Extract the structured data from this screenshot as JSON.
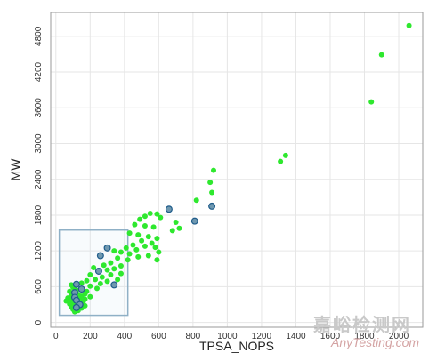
{
  "chart_data": {
    "type": "scatter",
    "title": "",
    "xlabel": "TPSA_NOPS",
    "ylabel": "MW",
    "xlim": [
      -30,
      2140
    ],
    "ylim": [
      -80,
      5200
    ],
    "x_ticks": [
      0,
      200,
      400,
      600,
      800,
      1000,
      1200,
      1400,
      1600,
      1800,
      2000
    ],
    "y_ticks": [
      0,
      600,
      1200,
      1800,
      2400,
      3000,
      3600,
      4200,
      4800
    ],
    "grid": true,
    "legend": "none",
    "colors": {
      "point": "#2ee82e",
      "highlight_fill": "#6f98b0",
      "highlight_edge": "#1f5c8a",
      "selection_box": "#8fb0c6",
      "grid": "#e6e6e6",
      "frame": "#9a9a9a"
    },
    "selection_region": {
      "x": [
        20,
        420
      ],
      "y": [
        120,
        1550
      ]
    },
    "points": [
      {
        "x": 2060,
        "y": 4980
      },
      {
        "x": 1900,
        "y": 4490
      },
      {
        "x": 1840,
        "y": 3700
      },
      {
        "x": 1340,
        "y": 2800
      },
      {
        "x": 1310,
        "y": 2700
      },
      {
        "x": 920,
        "y": 2550
      },
      {
        "x": 900,
        "y": 2350
      },
      {
        "x": 910,
        "y": 2180
      },
      {
        "x": 820,
        "y": 2050
      },
      {
        "x": 910,
        "y": 1950,
        "highlight": true
      },
      {
        "x": 660,
        "y": 1900,
        "highlight": true
      },
      {
        "x": 550,
        "y": 1830
      },
      {
        "x": 590,
        "y": 1820
      },
      {
        "x": 520,
        "y": 1780
      },
      {
        "x": 610,
        "y": 1760
      },
      {
        "x": 490,
        "y": 1730
      },
      {
        "x": 810,
        "y": 1700,
        "highlight": true
      },
      {
        "x": 700,
        "y": 1680
      },
      {
        "x": 460,
        "y": 1640
      },
      {
        "x": 520,
        "y": 1620
      },
      {
        "x": 570,
        "y": 1600
      },
      {
        "x": 720,
        "y": 1580
      },
      {
        "x": 680,
        "y": 1540
      },
      {
        "x": 430,
        "y": 1500
      },
      {
        "x": 480,
        "y": 1470
      },
      {
        "x": 540,
        "y": 1440
      },
      {
        "x": 590,
        "y": 1410
      },
      {
        "x": 500,
        "y": 1370
      },
      {
        "x": 560,
        "y": 1330
      },
      {
        "x": 450,
        "y": 1300
      },
      {
        "x": 520,
        "y": 1280
      },
      {
        "x": 580,
        "y": 1260
      },
      {
        "x": 410,
        "y": 1250
      },
      {
        "x": 470,
        "y": 1220
      },
      {
        "x": 600,
        "y": 1180
      },
      {
        "x": 430,
        "y": 1150
      },
      {
        "x": 540,
        "y": 1120
      },
      {
        "x": 480,
        "y": 1100
      },
      {
        "x": 590,
        "y": 1050
      },
      {
        "x": 420,
        "y": 1050
      },
      {
        "x": 300,
        "y": 1250,
        "highlight": true
      },
      {
        "x": 340,
        "y": 1200
      },
      {
        "x": 380,
        "y": 1180
      },
      {
        "x": 260,
        "y": 1120,
        "highlight": true
      },
      {
        "x": 360,
        "y": 1080
      },
      {
        "x": 320,
        "y": 1000
      },
      {
        "x": 280,
        "y": 960
      },
      {
        "x": 380,
        "y": 950
      },
      {
        "x": 220,
        "y": 920
      },
      {
        "x": 340,
        "y": 900
      },
      {
        "x": 300,
        "y": 880
      },
      {
        "x": 250,
        "y": 860,
        "highlight": true
      },
      {
        "x": 380,
        "y": 820
      },
      {
        "x": 320,
        "y": 800
      },
      {
        "x": 200,
        "y": 800
      },
      {
        "x": 270,
        "y": 760
      },
      {
        "x": 360,
        "y": 720
      },
      {
        "x": 230,
        "y": 720
      },
      {
        "x": 180,
        "y": 700
      },
      {
        "x": 300,
        "y": 690
      },
      {
        "x": 150,
        "y": 660
      },
      {
        "x": 260,
        "y": 650
      },
      {
        "x": 120,
        "y": 640,
        "highlight": true
      },
      {
        "x": 340,
        "y": 630,
        "highlight": true
      },
      {
        "x": 90,
        "y": 630
      },
      {
        "x": 200,
        "y": 610
      },
      {
        "x": 100,
        "y": 590
      },
      {
        "x": 240,
        "y": 570
      },
      {
        "x": 150,
        "y": 560,
        "highlight": true
      },
      {
        "x": 120,
        "y": 540
      },
      {
        "x": 180,
        "y": 520
      },
      {
        "x": 80,
        "y": 520
      },
      {
        "x": 110,
        "y": 500,
        "highlight": true
      },
      {
        "x": 170,
        "y": 480
      },
      {
        "x": 130,
        "y": 470
      },
      {
        "x": 90,
        "y": 450
      },
      {
        "x": 150,
        "y": 440
      },
      {
        "x": 200,
        "y": 430
      },
      {
        "x": 110,
        "y": 420,
        "highlight": true
      },
      {
        "x": 70,
        "y": 410
      },
      {
        "x": 140,
        "y": 400
      },
      {
        "x": 170,
        "y": 390
      },
      {
        "x": 90,
        "y": 380
      },
      {
        "x": 120,
        "y": 370,
        "highlight": true
      },
      {
        "x": 60,
        "y": 360
      },
      {
        "x": 160,
        "y": 350
      },
      {
        "x": 100,
        "y": 340
      },
      {
        "x": 130,
        "y": 320
      },
      {
        "x": 80,
        "y": 310
      },
      {
        "x": 140,
        "y": 300,
        "highlight": true
      },
      {
        "x": 110,
        "y": 290
      },
      {
        "x": 170,
        "y": 280
      },
      {
        "x": 90,
        "y": 270
      },
      {
        "x": 120,
        "y": 250,
        "highlight": true
      },
      {
        "x": 150,
        "y": 240
      },
      {
        "x": 100,
        "y": 220
      },
      {
        "x": 130,
        "y": 200
      },
      {
        "x": 110,
        "y": 180
      }
    ]
  },
  "watermark": {
    "text_cn": "嘉峪检测网",
    "text_en": "AnyTesting.com"
  }
}
